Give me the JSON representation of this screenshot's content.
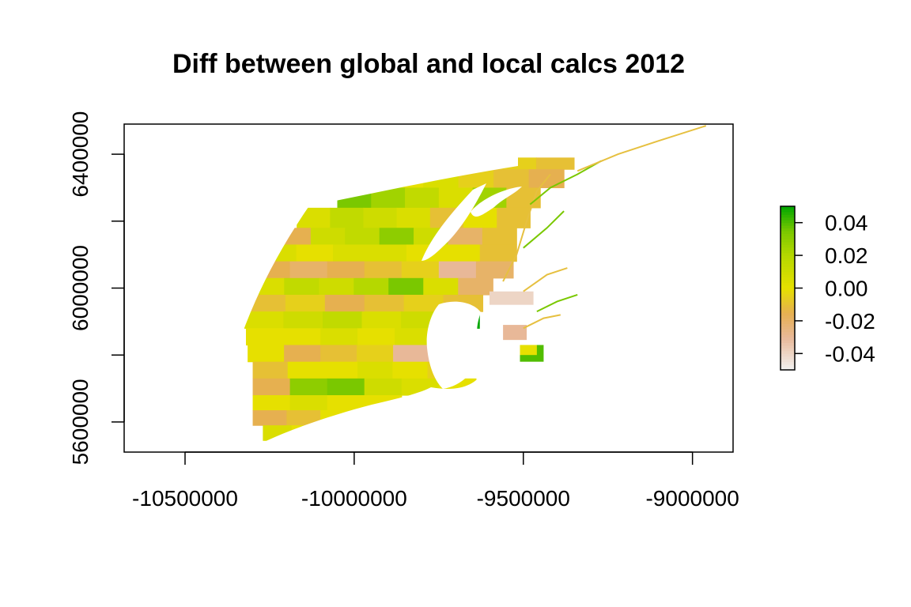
{
  "chart_data": {
    "type": "heatmap",
    "title": "Diff between global and local calcs 2012",
    "xlabel": "",
    "ylabel": "",
    "xlim": [
      -10680000,
      -8880000
    ],
    "ylim": [
      5510000,
      6490000
    ],
    "x_ticks": [
      -10500000,
      -10000000,
      -9500000,
      -9000000
    ],
    "x_tick_labels": [
      "-10500000",
      "-10000000",
      "-9500000",
      "-9000000"
    ],
    "y_ticks": [
      5600000,
      6000000,
      6400000
    ],
    "y_tick_labels": [
      "5600000",
      "6000000",
      "6400000"
    ],
    "y_minor_ticks": [
      5800000,
      6200000
    ],
    "legend": {
      "placement": "right",
      "range": [
        -0.05,
        0.05
      ],
      "ticks": [
        0.04,
        0.02,
        0.0,
        -0.02,
        -0.04
      ],
      "tick_labels": [
        "0.04",
        "0.02",
        "0.00",
        "-0.02",
        "-0.04"
      ]
    },
    "color_stops": [
      {
        "value": -0.05,
        "color": "#f2f2f2"
      },
      {
        "value": -0.03,
        "color": "#e8b898"
      },
      {
        "value": -0.015,
        "color": "#e6b050"
      },
      {
        "value": 0.0,
        "color": "#e6e000"
      },
      {
        "value": 0.02,
        "color": "#b5d800"
      },
      {
        "value": 0.035,
        "color": "#7ac800"
      },
      {
        "value": 0.05,
        "color": "#00a600"
      }
    ],
    "rows": [
      {
        "y0": 6355000,
        "y1": 6390000,
        "xmin": -9910000,
        "xmax": -9350000,
        "values": [
          0.0,
          0.005,
          0.0,
          -0.005,
          -0.01
        ]
      },
      {
        "y0": 6300000,
        "y1": 6355000,
        "xmin": -9900000,
        "xmax": -9380000,
        "values": [
          0.0,
          0.005,
          -0.005,
          -0.01,
          -0.015
        ]
      },
      {
        "y0": 6240000,
        "y1": 6300000,
        "xmin": -10050000,
        "xmax": -9450000,
        "values": [
          0.035,
          0.025,
          0.015,
          0.005,
          0.025,
          -0.01
        ]
      },
      {
        "y0": 6180000,
        "y1": 6240000,
        "xmin": -10170000,
        "xmax": -9480000,
        "values": [
          0.005,
          0.015,
          0.01,
          0.005,
          -0.01,
          0.0,
          -0.01
        ]
      },
      {
        "y0": 6130000,
        "y1": 6180000,
        "xmin": -10230000,
        "xmax": -9520000,
        "values": [
          -0.015,
          0.01,
          0.015,
          0.03,
          0.01,
          -0.02,
          -0.01
        ]
      },
      {
        "y0": 6080000,
        "y1": 6130000,
        "xmin": -10280000,
        "xmax": -9520000,
        "values": [
          0.005,
          0.0,
          0.005,
          0.005,
          0.0,
          0.0,
          -0.01
        ]
      },
      {
        "y0": 6030000,
        "y1": 6080000,
        "xmin": -10300000,
        "xmax": -9530000,
        "values": [
          -0.015,
          -0.02,
          -0.015,
          -0.01,
          -0.005,
          -0.03,
          -0.02
        ]
      },
      {
        "y0": 5980000,
        "y1": 6030000,
        "xmin": -10310000,
        "xmax": -9590000,
        "values": [
          0.005,
          0.015,
          0.01,
          0.02,
          0.035,
          0.005,
          -0.02
        ]
      },
      {
        "y0": 5930000,
        "y1": 5980000,
        "xmin": -10320000,
        "xmax": -9620000,
        "values": [
          -0.01,
          -0.005,
          -0.015,
          -0.01,
          -0.005,
          -0.01
        ]
      },
      {
        "y0": 5880000,
        "y1": 5930000,
        "xmin": -10325000,
        "xmax": -9630000,
        "values": [
          0.005,
          0.01,
          0.015,
          0.005,
          0.01,
          0.05
        ]
      },
      {
        "y0": 5830000,
        "y1": 5880000,
        "xmin": -10320000,
        "xmax": -9660000,
        "values": [
          0.0,
          0.0,
          0.005,
          0.0,
          0.005,
          0.0
        ]
      },
      {
        "y0": 5780000,
        "y1": 5830000,
        "xmin": -10315000,
        "xmax": -9670000,
        "values": [
          0.0,
          -0.015,
          -0.01,
          -0.005,
          -0.03,
          -0.02
        ]
      },
      {
        "y0": 5730000,
        "y1": 5780000,
        "xmin": -10300000,
        "xmax": -9680000,
        "values": [
          -0.01,
          0.0,
          0.0,
          0.005,
          0.0,
          -0.005
        ]
      },
      {
        "y0": 5680000,
        "y1": 5730000,
        "xmin": -10300000,
        "xmax": -9640000,
        "values": [
          -0.015,
          0.03,
          0.035,
          0.01,
          0.005,
          0.0
        ]
      },
      {
        "y0": 5635000,
        "y1": 5680000,
        "xmin": -10300000,
        "xmax": -9860000,
        "values": [
          0.0,
          0.005,
          0.0,
          0.0
        ]
      },
      {
        "y0": 5590000,
        "y1": 5635000,
        "xmin": -10300000,
        "xmax": -10000000,
        "values": [
          -0.015,
          -0.01,
          0.0
        ]
      },
      {
        "y0": 5545000,
        "y1": 5590000,
        "xmin": -10270000,
        "xmax": -10100000,
        "values": [
          0.005,
          0.0
        ]
      },
      {
        "y0": 5520000,
        "y1": 5545000,
        "xmin": -10260000,
        "xmax": -10220000,
        "values": [
          0.0
        ]
      }
    ],
    "patches": [
      {
        "x0": -9720000,
        "x1": -9680000,
        "y0": 5880000,
        "y1": 5905000,
        "value": 0.05
      },
      {
        "x0": -9510000,
        "x1": -9440000,
        "y0": 5780000,
        "y1": 5830000,
        "value": 0.04
      },
      {
        "x0": -9600000,
        "x1": -9470000,
        "y0": 5950000,
        "y1": 5990000,
        "value": -0.04
      },
      {
        "x0": -9560000,
        "x1": -9490000,
        "y0": 5845000,
        "y1": 5890000,
        "value": -0.03
      },
      {
        "x0": -9510000,
        "x1": -9460000,
        "y0": 5800000,
        "y1": 5830000,
        "value": 0.0
      }
    ],
    "fringe_segments": [
      [
        [
          -9560000,
          6020000
        ],
        [
          -9520000,
          6100000
        ],
        [
          -9490000,
          6200000
        ],
        [
          -9460000,
          6290000
        ],
        [
          -9420000,
          6340000
        ]
      ],
      [
        [
          -9480000,
          6250000
        ],
        [
          -9420000,
          6300000
        ],
        [
          -9340000,
          6340000
        ],
        [
          -9270000,
          6380000
        ]
      ],
      [
        [
          -9340000,
          6350000
        ],
        [
          -9220000,
          6400000
        ],
        [
          -9100000,
          6440000
        ],
        [
          -8960000,
          6485000
        ]
      ],
      [
        [
          -9500000,
          6120000
        ],
        [
          -9430000,
          6180000
        ],
        [
          -9380000,
          6230000
        ]
      ],
      [
        [
          -9500000,
          5990000
        ],
        [
          -9430000,
          6040000
        ],
        [
          -9370000,
          6060000
        ]
      ],
      [
        [
          -9460000,
          5930000
        ],
        [
          -9400000,
          5960000
        ],
        [
          -9340000,
          5980000
        ]
      ],
      [
        [
          -9500000,
          5880000
        ],
        [
          -9440000,
          5910000
        ],
        [
          -9390000,
          5920000
        ]
      ]
    ]
  }
}
